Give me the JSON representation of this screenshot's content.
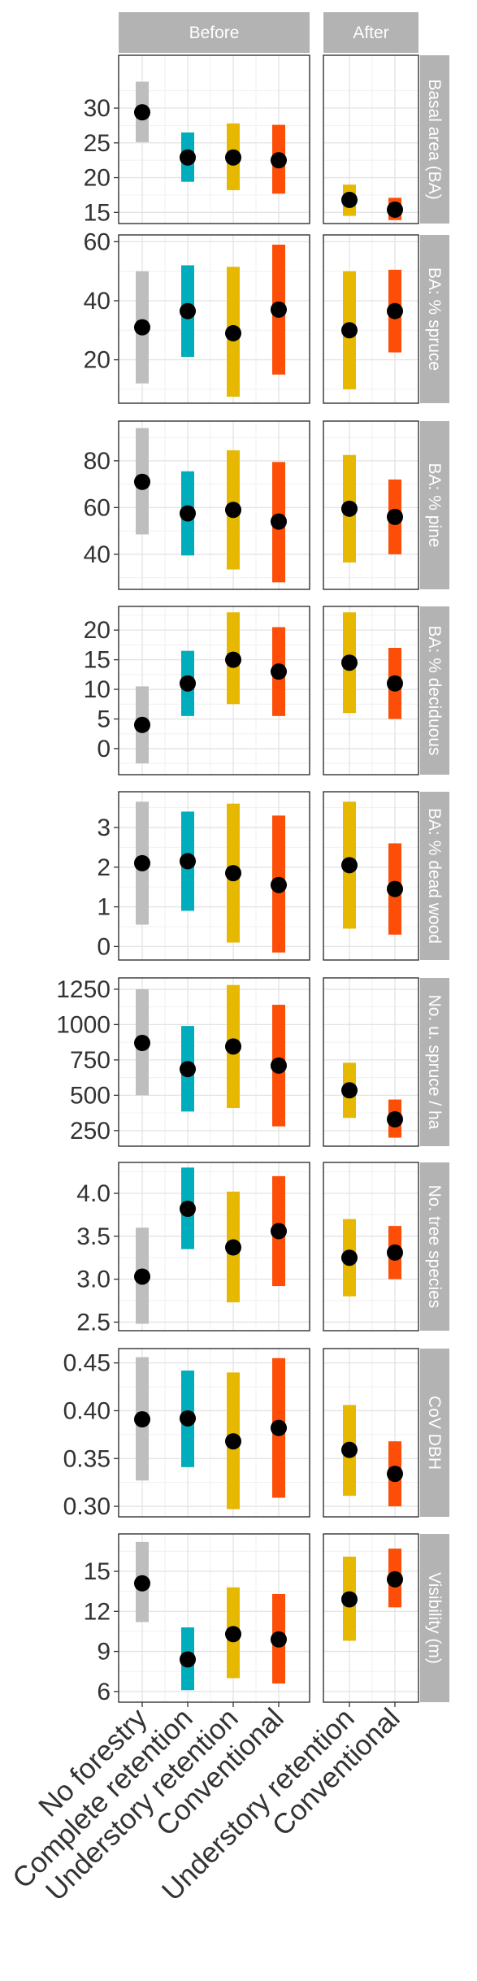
{
  "chart_data": {
    "type": "dot-range",
    "facets_x": [
      "Before",
      "After"
    ],
    "categories": {
      "Before": [
        "No forestry",
        "Complete retention",
        "Understory retention",
        "Conventional"
      ],
      "After": [
        "Understory retention",
        "Conventional"
      ]
    },
    "colors": {
      "No forestry": "#bebebe",
      "Complete retention": "#00adbc",
      "Understory retention": "#e7b800",
      "Conventional": "#fc4e07"
    },
    "grid": true,
    "panels": [
      {
        "label": "Basal area (BA)",
        "ylim": [
          13.4,
          37.6
        ],
        "ticks": [
          15,
          20,
          25,
          30
        ],
        "tick_labels": [
          "15",
          "20",
          "25",
          "30"
        ],
        "series": {
          "Before": [
            {
              "category": "No forestry",
              "mean": 29.4,
              "low": 25.1,
              "high": 33.8
            },
            {
              "category": "Complete retention",
              "mean": 22.9,
              "low": 19.4,
              "high": 26.5
            },
            {
              "category": "Understory retention",
              "mean": 22.9,
              "low": 18.2,
              "high": 27.8
            },
            {
              "category": "Conventional",
              "mean": 22.5,
              "low": 17.7,
              "high": 27.6
            }
          ],
          "After": [
            {
              "category": "Understory retention",
              "mean": 16.8,
              "low": 14.5,
              "high": 19.0
            },
            {
              "category": "Conventional",
              "mean": 15.4,
              "low": 13.9,
              "high": 17.1
            }
          ]
        }
      },
      {
        "label": "BA: % spruce",
        "ylim": [
          5.3,
          62.3
        ],
        "ticks": [
          20,
          40,
          60
        ],
        "tick_labels": [
          "20",
          "40",
          "60"
        ],
        "series": {
          "Before": [
            {
              "category": "No forestry",
              "mean": 31,
              "low": 12,
              "high": 50
            },
            {
              "category": "Complete retention",
              "mean": 36.5,
              "low": 21,
              "high": 52
            },
            {
              "category": "Understory retention",
              "mean": 29,
              "low": 7.5,
              "high": 51.5
            },
            {
              "category": "Conventional",
              "mean": 37,
              "low": 15,
              "high": 59
            }
          ],
          "After": [
            {
              "category": "Understory retention",
              "mean": 30,
              "low": 10,
              "high": 50
            },
            {
              "category": "Conventional",
              "mean": 36.5,
              "low": 22.5,
              "high": 50.5
            }
          ]
        }
      },
      {
        "label": "BA: % pine",
        "ylim": [
          25.0,
          97.0
        ],
        "ticks": [
          40,
          60,
          80
        ],
        "tick_labels": [
          "40",
          "60",
          "80"
        ],
        "series": {
          "Before": [
            {
              "category": "No forestry",
              "mean": 71,
              "low": 48.5,
              "high": 94
            },
            {
              "category": "Complete retention",
              "mean": 57.5,
              "low": 39.5,
              "high": 75.5
            },
            {
              "category": "Understory retention",
              "mean": 59,
              "low": 33.5,
              "high": 84.5
            },
            {
              "category": "Conventional",
              "mean": 54,
              "low": 28,
              "high": 79.5
            }
          ],
          "After": [
            {
              "category": "Understory retention",
              "mean": 59.5,
              "low": 36.5,
              "high": 82.5
            },
            {
              "category": "Conventional",
              "mean": 56,
              "low": 40,
              "high": 72
            }
          ]
        }
      },
      {
        "label": "BA: % deciduous",
        "ylim": [
          -4.4,
          24.0
        ],
        "ticks": [
          0,
          5,
          10,
          15,
          20
        ],
        "tick_labels": [
          "0",
          "5",
          "10",
          "15",
          "20"
        ],
        "series": {
          "Before": [
            {
              "category": "No forestry",
              "mean": 4,
              "low": -2.5,
              "high": 10.5
            },
            {
              "category": "Complete retention",
              "mean": 11,
              "low": 5.5,
              "high": 16.5
            },
            {
              "category": "Understory retention",
              "mean": 15,
              "low": 7.5,
              "high": 23
            },
            {
              "category": "Conventional",
              "mean": 13,
              "low": 5.5,
              "high": 20.5
            }
          ],
          "After": [
            {
              "category": "Understory retention",
              "mean": 14.5,
              "low": 6,
              "high": 23
            },
            {
              "category": "Conventional",
              "mean": 11,
              "low": 5,
              "high": 17
            }
          ]
        }
      },
      {
        "label": "BA: % dead wood",
        "ylim": [
          -0.34,
          3.9
        ],
        "ticks": [
          0,
          1,
          2,
          3
        ],
        "tick_labels": [
          "0",
          "1",
          "2",
          "3"
        ],
        "series": {
          "Before": [
            {
              "category": "No forestry",
              "mean": 2.1,
              "low": 0.55,
              "high": 3.65
            },
            {
              "category": "Complete retention",
              "mean": 2.15,
              "low": 0.9,
              "high": 3.4
            },
            {
              "category": "Understory retention",
              "mean": 1.85,
              "low": 0.1,
              "high": 3.6
            },
            {
              "category": "Conventional",
              "mean": 1.55,
              "low": -0.15,
              "high": 3.3
            }
          ],
          "After": [
            {
              "category": "Understory retention",
              "mean": 2.05,
              "low": 0.45,
              "high": 3.65
            },
            {
              "category": "Conventional",
              "mean": 1.45,
              "low": 0.3,
              "high": 2.6
            }
          ]
        }
      },
      {
        "label": "No. u. spruce / ha",
        "ylim": [
          140,
          1330
        ],
        "ticks": [
          250,
          500,
          750,
          1000,
          1250
        ],
        "tick_labels": [
          "250",
          "500",
          "750",
          "1000",
          "1250"
        ],
        "series": {
          "Before": [
            {
              "category": "No forestry",
              "mean": 870,
              "low": 500,
              "high": 1250
            },
            {
              "category": "Complete retention",
              "mean": 685,
              "low": 385,
              "high": 990
            },
            {
              "category": "Understory retention",
              "mean": 845,
              "low": 410,
              "high": 1280
            },
            {
              "category": "Conventional",
              "mean": 710,
              "low": 280,
              "high": 1140
            }
          ],
          "After": [
            {
              "category": "Understory retention",
              "mean": 535,
              "low": 340,
              "high": 730
            },
            {
              "category": "Conventional",
              "mean": 330,
              "low": 200,
              "high": 470
            }
          ]
        }
      },
      {
        "label": "No. tree species",
        "ylim": [
          2.4,
          4.36
        ],
        "ticks": [
          2.5,
          3.0,
          3.5,
          4.0
        ],
        "tick_labels": [
          "2.5",
          "3.0",
          "3.5",
          "4.0"
        ],
        "series": {
          "Before": [
            {
              "category": "No forestry",
              "mean": 3.03,
              "low": 2.48,
              "high": 3.6
            },
            {
              "category": "Complete retention",
              "mean": 3.82,
              "low": 3.35,
              "high": 4.3
            },
            {
              "category": "Understory retention",
              "mean": 3.37,
              "low": 2.73,
              "high": 4.02
            },
            {
              "category": "Conventional",
              "mean": 3.56,
              "low": 2.92,
              "high": 4.2
            }
          ],
          "After": [
            {
              "category": "Understory retention",
              "mean": 3.25,
              "low": 2.8,
              "high": 3.7
            },
            {
              "category": "Conventional",
              "mean": 3.31,
              "low": 3.0,
              "high": 3.62
            }
          ]
        }
      },
      {
        "label": "CoV DBH",
        "ylim": [
          0.289,
          0.465
        ],
        "ticks": [
          0.3,
          0.35,
          0.4,
          0.45
        ],
        "tick_labels": [
          "0.30",
          "0.35",
          "0.40",
          "0.45"
        ],
        "series": {
          "Before": [
            {
              "category": "No forestry",
              "mean": 0.391,
              "low": 0.327,
              "high": 0.456
            },
            {
              "category": "Complete retention",
              "mean": 0.392,
              "low": 0.341,
              "high": 0.442
            },
            {
              "category": "Understory retention",
              "mean": 0.368,
              "low": 0.297,
              "high": 0.44
            },
            {
              "category": "Conventional",
              "mean": 0.382,
              "low": 0.309,
              "high": 0.455
            }
          ],
          "After": [
            {
              "category": "Understory retention",
              "mean": 0.359,
              "low": 0.311,
              "high": 0.406
            },
            {
              "category": "Conventional",
              "mean": 0.334,
              "low": 0.3,
              "high": 0.368
            }
          ]
        }
      },
      {
        "label": "Visibility (m)",
        "ylim": [
          5.2,
          17.8
        ],
        "ticks": [
          6,
          9,
          12,
          15
        ],
        "tick_labels": [
          "6",
          "9",
          "12",
          "15"
        ],
        "series": {
          "Before": [
            {
              "category": "No forestry",
              "mean": 14.1,
              "low": 11.2,
              "high": 17.2
            },
            {
              "category": "Complete retention",
              "mean": 8.4,
              "low": 6.1,
              "high": 10.8
            },
            {
              "category": "Understory retention",
              "mean": 10.3,
              "low": 7.0,
              "high": 13.8
            },
            {
              "category": "Conventional",
              "mean": 9.9,
              "low": 6.6,
              "high": 13.3
            }
          ],
          "After": [
            {
              "category": "Understory retention",
              "mean": 12.9,
              "low": 9.8,
              "high": 16.1
            },
            {
              "category": "Conventional",
              "mean": 14.4,
              "low": 12.3,
              "high": 16.7
            }
          ]
        }
      }
    ]
  }
}
